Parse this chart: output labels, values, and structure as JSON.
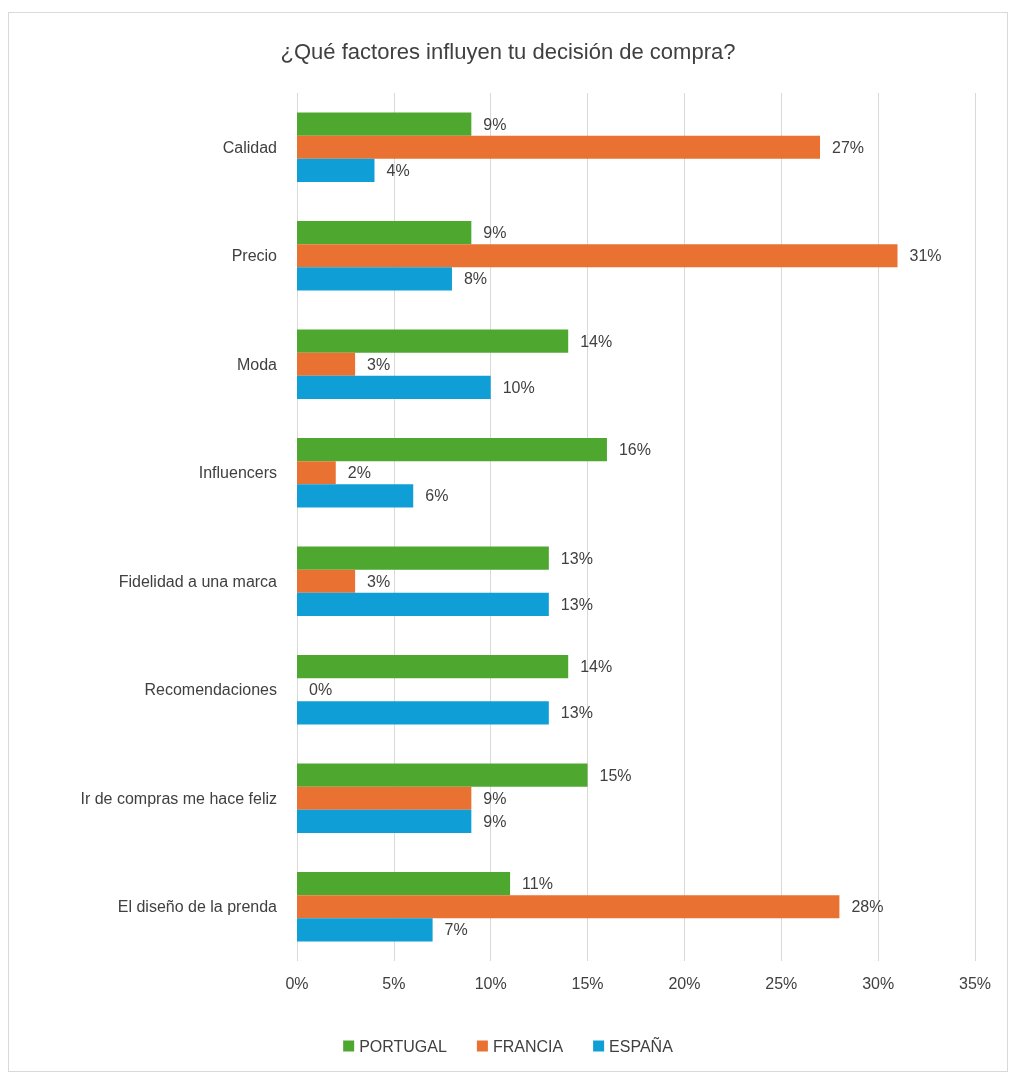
{
  "chart_data": {
    "type": "bar",
    "orientation": "horizontal",
    "title": "¿Qué factores influyen tu decisión de compra?",
    "categories": [
      "Calidad",
      "Precio",
      "Moda",
      "Influencers",
      "Fidelidad a una marca",
      "Recomendaciones",
      "Ir de compras me hace feliz",
      "El diseño de la prenda"
    ],
    "series": [
      {
        "name": "PORTUGAL",
        "color": "#4ea72e",
        "values": [
          9,
          9,
          14,
          16,
          13,
          14,
          15,
          11
        ],
        "value_labels": [
          "9%",
          "9%",
          "14%",
          "16%",
          "13%",
          "14%",
          "15%",
          "11%"
        ]
      },
      {
        "name": "FRANCIA",
        "color": "#e97132",
        "values": [
          27,
          31,
          3,
          2,
          3,
          0,
          9,
          28
        ],
        "value_labels": [
          "27%",
          "31%",
          "3%",
          "2%",
          "3%",
          "0%",
          "9%",
          "28%"
        ]
      },
      {
        "name": "ESPAÑA",
        "color": "#0f9ed5",
        "values": [
          4,
          8,
          10,
          6,
          13,
          13,
          9,
          7
        ],
        "value_labels": [
          "4%",
          "8%",
          "10%",
          "6%",
          "13%",
          "13%",
          "9%",
          "7%"
        ]
      }
    ],
    "xlim": [
      0,
      35
    ],
    "xticks": [
      {
        "value": 0,
        "label": "0%"
      },
      {
        "value": 5,
        "label": "5%"
      },
      {
        "value": 10,
        "label": "10%"
      },
      {
        "value": 15,
        "label": "15%"
      },
      {
        "value": 20,
        "label": "20%"
      },
      {
        "value": 25,
        "label": "25%"
      },
      {
        "value": 30,
        "label": "30%"
      },
      {
        "value": 35,
        "label": "35%"
      }
    ],
    "grid": "x",
    "legend": "bottom"
  }
}
